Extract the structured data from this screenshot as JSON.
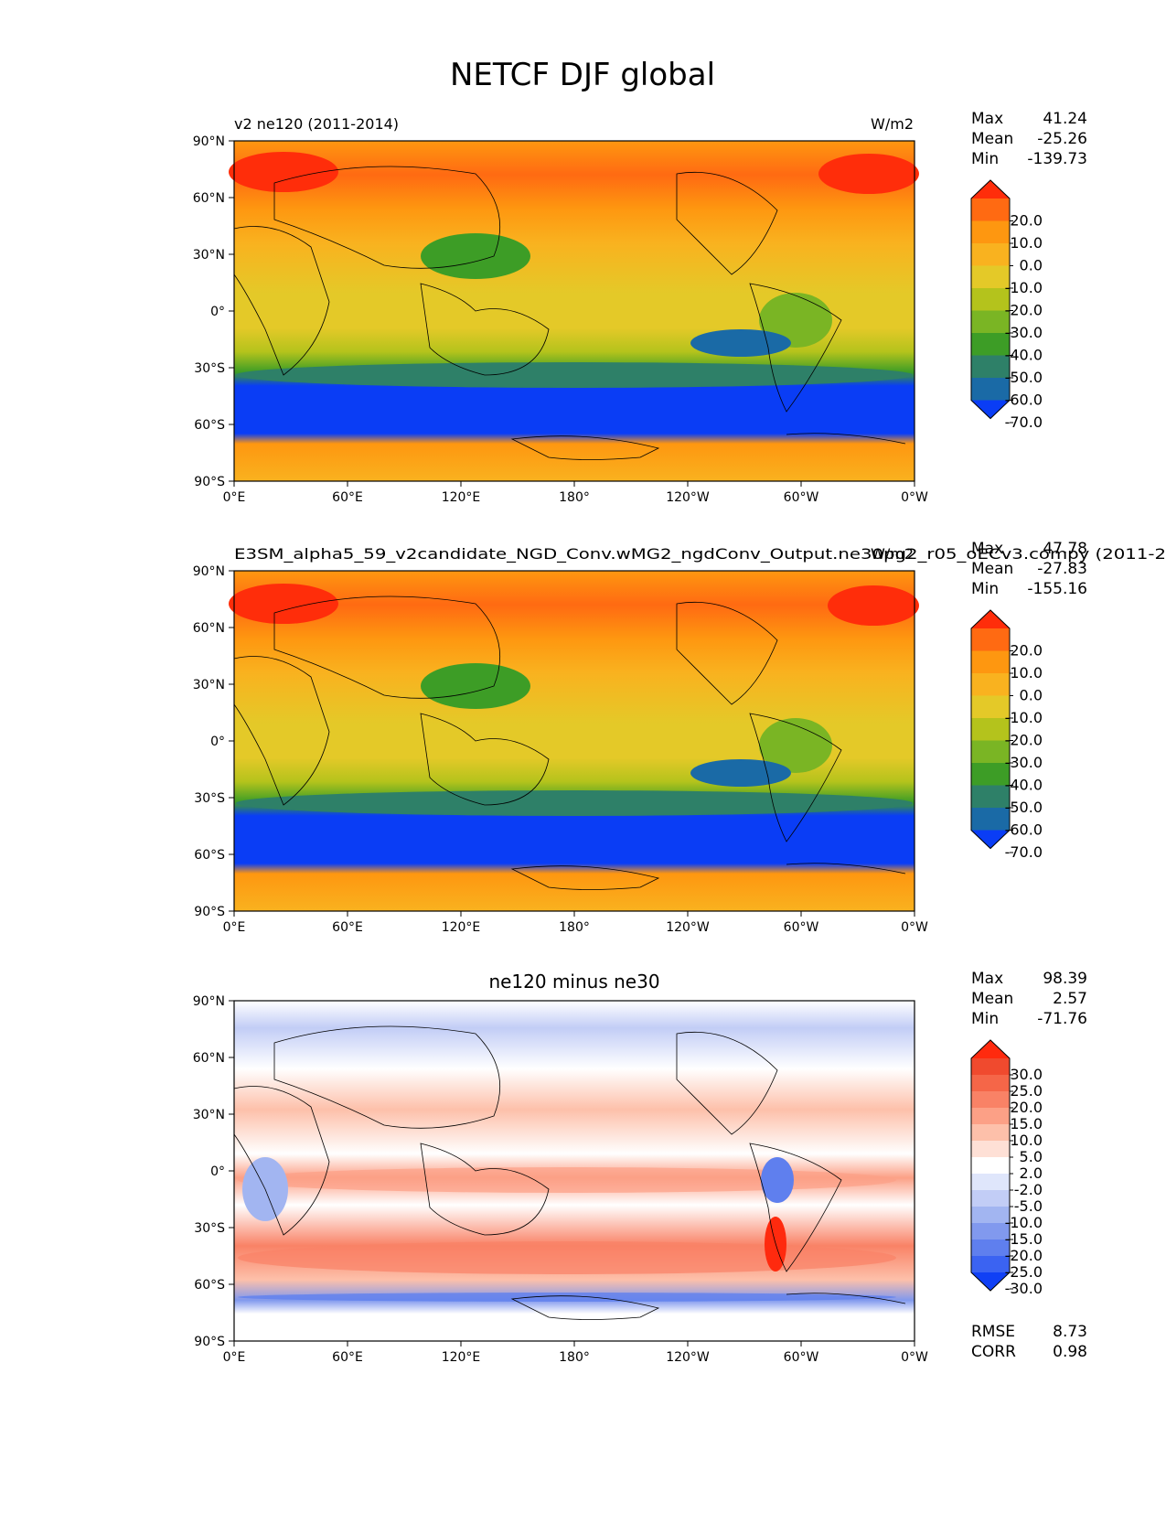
{
  "figure": {
    "title": "NETCF DJF global"
  },
  "lon_ticks": [
    "0°E",
    "60°E",
    "120°E",
    "180°",
    "120°W",
    "60°W",
    "0°W"
  ],
  "lat_ticks": [
    "90°N",
    "60°N",
    "30°N",
    "0°",
    "30°S",
    "60°S",
    "90°S"
  ],
  "panels": [
    {
      "id": "test",
      "title_left": "v2 ne120 (2011-2014)",
      "title_right": "W/m2",
      "title_center": "",
      "stats": [
        {
          "label": "Max",
          "value": "41.24"
        },
        {
          "label": "Mean",
          "value": "-25.26"
        },
        {
          "label": "Min",
          "value": "-139.73"
        }
      ],
      "colorbar": {
        "labels": [
          "20.0",
          "10.0",
          "0.0",
          "-10.0",
          "-20.0",
          "-30.0",
          "-40.0",
          "-50.0",
          "-60.0",
          "-70.0"
        ],
        "colors": [
          "#ff2d0a",
          "#ff6a12",
          "#fe9710",
          "#f9b21f",
          "#e4c928",
          "#b4c31c",
          "#7ab524",
          "#3d9d26",
          "#2e8068",
          "#1a6aa6",
          "#0a3df5"
        ],
        "extend": "both"
      }
    },
    {
      "id": "reference",
      "title_left": "E3SM_alpha5_59_v2candidate_NGD_Conv.wMG2_ngdConv_Output.ne30pg2_r05_oECv3.compy (2011-2",
      "title_right": "W/m2",
      "title_center": "",
      "stats": [
        {
          "label": "Max",
          "value": "47.78"
        },
        {
          "label": "Mean",
          "value": "-27.83"
        },
        {
          "label": "Min",
          "value": "-155.16"
        }
      ],
      "colorbar": {
        "labels": [
          "20.0",
          "10.0",
          "0.0",
          "-10.0",
          "-20.0",
          "-30.0",
          "-40.0",
          "-50.0",
          "-60.0",
          "-70.0"
        ],
        "colors": [
          "#ff2d0a",
          "#ff6a12",
          "#fe9710",
          "#f9b21f",
          "#e4c928",
          "#b4c31c",
          "#7ab524",
          "#3d9d26",
          "#2e8068",
          "#1a6aa6",
          "#0a3df5"
        ],
        "extend": "both"
      }
    },
    {
      "id": "difference",
      "title_left": "",
      "title_right": "",
      "title_center": "ne120 minus ne30",
      "stats": [
        {
          "label": "Max",
          "value": "98.39"
        },
        {
          "label": "Mean",
          "value": "2.57"
        },
        {
          "label": "Min",
          "value": "-71.76"
        }
      ],
      "colorbar": {
        "labels": [
          "30.0",
          "25.0",
          "20.0",
          "15.0",
          "10.0",
          "5.0",
          "2.0",
          "-2.0",
          "-5.0",
          "-10.0",
          "-15.0",
          "-20.0",
          "-25.0",
          "-30.0"
        ],
        "colors": [
          "#ff2a0e",
          "#f04a2e",
          "#f56648",
          "#f98266",
          "#fca086",
          "#fdc0aa",
          "#fee0d6",
          "#ffffff",
          "#dfe6fb",
          "#c2cdf6",
          "#a2b5f1",
          "#8199ee",
          "#5f7fee",
          "#3b63f2",
          "#1040f5"
        ],
        "extend": "both"
      },
      "metrics": [
        {
          "label": "RMSE",
          "value": "8.73"
        },
        {
          "label": "CORR",
          "value": "0.98"
        }
      ]
    }
  ]
}
